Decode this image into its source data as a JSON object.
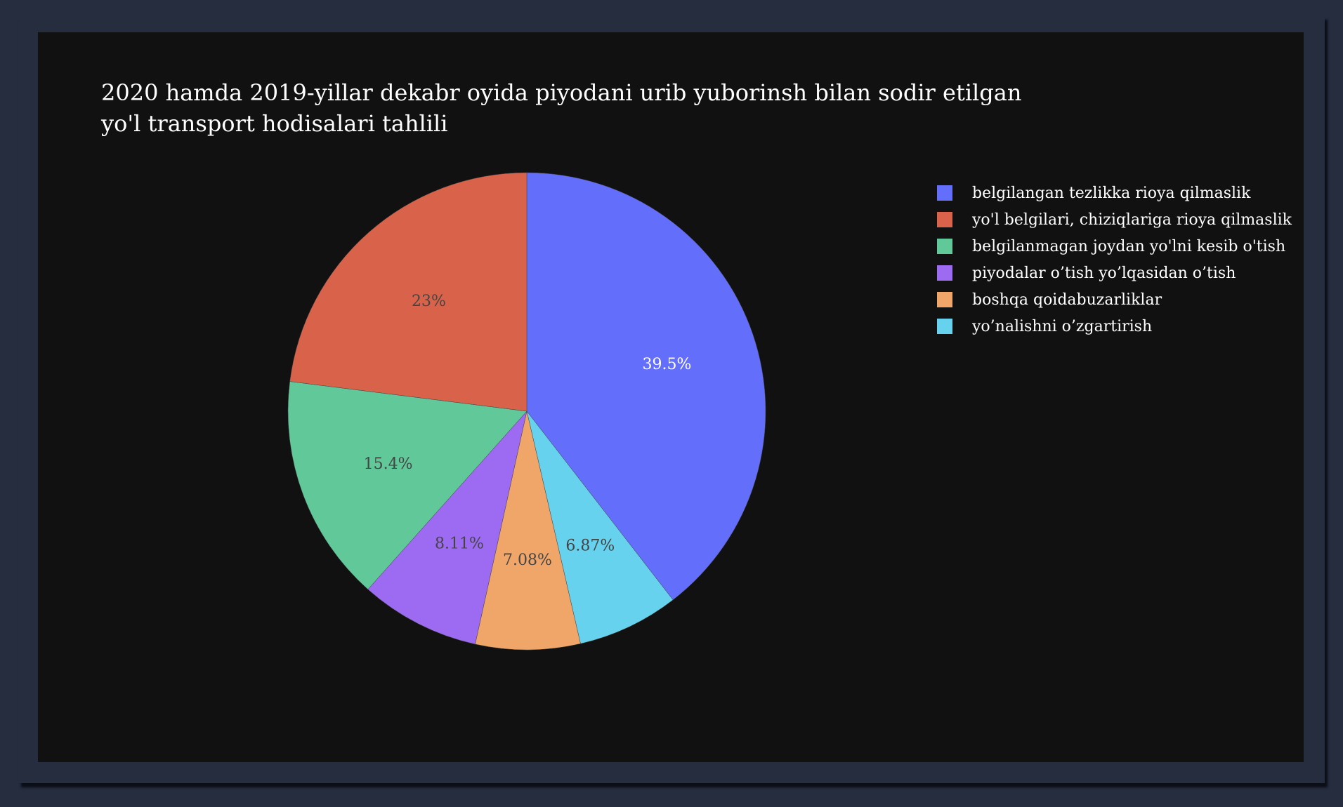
{
  "chart_data": {
    "type": "pie",
    "title_lines": [
      "2020 hamda 2019-yillar dekabr oyida piyodani urib yuborinsh bilan sodir etilgan",
      "yo'l transport hodisalari tahlili"
    ],
    "legend_placement": "top-right",
    "slices": [
      {
        "label": "belgilangan tezlikka rioya qilmaslik",
        "value": 39.5,
        "text": "39.5%",
        "color": "#636efa",
        "text_color": "#ffffff"
      },
      {
        "label": "yo'l belgilari, chiziqlariga rioya qilmaslik",
        "value": 23.0,
        "text": "23%",
        "color": "#d9634a",
        "text_color": "#444444"
      },
      {
        "label": "belgilanmagan joydan yo'lni kesib o'tish",
        "value": 15.4,
        "text": "15.4%",
        "color": "#61c89a",
        "text_color": "#444444"
      },
      {
        "label": "piyodalar o’tish yo’lqasidan o’tish",
        "value": 8.11,
        "text": "8.11%",
        "color": "#9d6bf2",
        "text_color": "#444444"
      },
      {
        "label": "boshqa qoidabuzarliklar",
        "value": 7.08,
        "text": "7.08%",
        "color": "#f0a668",
        "text_color": "#444444"
      },
      {
        "label": "yo’nalishni o’zgartirish",
        "value": 6.87,
        "text": "6.87%",
        "color": "#66d2ee",
        "text_color": "#444444"
      }
    ],
    "pie_order": [
      0,
      5,
      4,
      3,
      2,
      1
    ]
  }
}
